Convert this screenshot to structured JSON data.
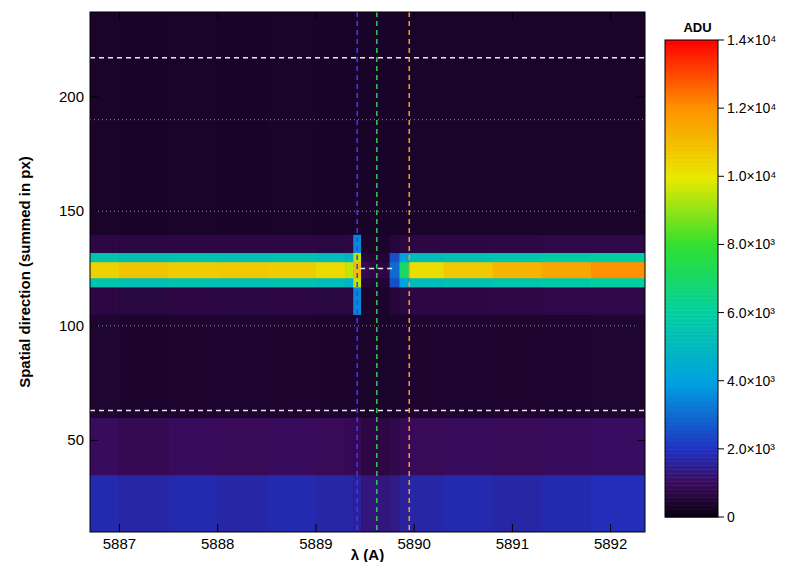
{
  "chart_data": {
    "type": "heatmap",
    "x_label": "λ (A)",
    "y_label": "Spatial direction (summed in px)",
    "xlim": [
      5886.7,
      5892.35
    ],
    "xticks": [
      5887,
      5888,
      5889,
      5890,
      5891,
      5892
    ],
    "ylim": [
      10,
      237
    ],
    "yticks": [
      50,
      100,
      150,
      200
    ],
    "grid": false,
    "x_edges": [
      5886.7,
      5887.0,
      5887.5,
      5888.0,
      5888.5,
      5889.0,
      5889.3,
      5889.38,
      5889.46,
      5889.55,
      5889.75,
      5889.85,
      5889.95,
      5890.3,
      5890.8,
      5891.3,
      5891.8,
      5892.35
    ],
    "y_edges": [
      10,
      35,
      60,
      105,
      117,
      121,
      128,
      132,
      140,
      237
    ],
    "z": [
      [
        1800,
        1700,
        1800,
        1700,
        1800,
        1700,
        1700,
        1600,
        1300,
        1300,
        1400,
        1600,
        1700,
        1800,
        1700,
        1800,
        1900
      ],
      [
        1000,
        900,
        1000,
        950,
        1000,
        950,
        900,
        900,
        700,
        700,
        800,
        900,
        950,
        1000,
        950,
        1000,
        1050
      ],
      [
        450,
        420,
        430,
        440,
        430,
        420,
        420,
        420,
        350,
        350,
        380,
        420,
        430,
        440,
        430,
        440,
        450
      ],
      [
        700,
        650,
        700,
        680,
        700,
        650,
        700,
        3500,
        400,
        400,
        600,
        650,
        700,
        700,
        720,
        750,
        750
      ],
      [
        5500,
        5300,
        5400,
        5300,
        5400,
        5200,
        4800,
        9500,
        600,
        500,
        2500,
        4000,
        5200,
        5400,
        5600,
        5800,
        6000
      ],
      [
        10500,
        10800,
        10600,
        10700,
        10600,
        10300,
        9500,
        11000,
        900,
        700,
        3000,
        7000,
        10200,
        10700,
        11200,
        11500,
        12000
      ],
      [
        5500,
        5300,
        5400,
        5300,
        5400,
        5200,
        4800,
        9500,
        600,
        500,
        2500,
        4000,
        5200,
        5400,
        5600,
        5800,
        6000
      ],
      [
        700,
        650,
        700,
        680,
        700,
        650,
        700,
        3500,
        400,
        400,
        600,
        650,
        700,
        700,
        720,
        750,
        750
      ],
      [
        350,
        340,
        350,
        340,
        350,
        340,
        340,
        340,
        330,
        330,
        330,
        340,
        350,
        350,
        350,
        350,
        350
      ]
    ],
    "vlines": [
      {
        "x": 5889.42,
        "color": "#3a3aff",
        "line_style": "dashed"
      },
      {
        "x": 5889.62,
        "color": "#33cc55",
        "line_style": "dashed"
      },
      {
        "x": 5889.95,
        "color": "#ff9a1a",
        "line_style": "dashed"
      }
    ],
    "hlines": [
      {
        "y": 217,
        "line_style": "dashed"
      },
      {
        "y": 190,
        "line_style": "dotted"
      },
      {
        "y": 150,
        "line_style": "dotted"
      },
      {
        "y": 125,
        "x": [
          5889.45,
          5889.8
        ],
        "line_style": "dashed"
      },
      {
        "y": 100,
        "line_style": "dotted"
      },
      {
        "y": 63,
        "line_style": "dashed"
      }
    ],
    "colorbar": {
      "label": "ADU",
      "range": [
        0,
        14000
      ],
      "ticks": [
        0,
        {
          "value": 2000,
          "label": "2.0×10³"
        },
        {
          "value": 4000,
          "label": "4.0×10³"
        },
        {
          "value": 6000,
          "label": "6.0×10³"
        },
        {
          "value": 8000,
          "label": "8.0×10³"
        },
        {
          "value": 10000,
          "label": "1.0×10⁴"
        },
        {
          "value": 12000,
          "label": "1.2×10⁴"
        },
        {
          "value": 14000,
          "label": "1.4×10⁴"
        }
      ]
    }
  }
}
